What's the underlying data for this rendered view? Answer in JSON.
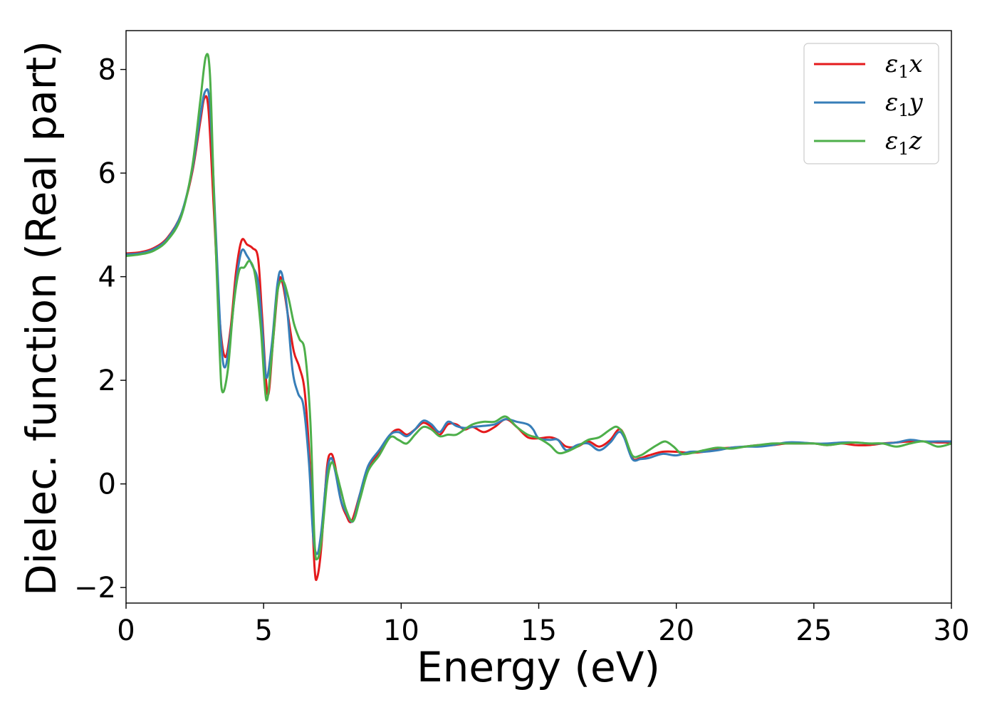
{
  "chart_data": {
    "type": "line",
    "xlabel": "Energy (eV)",
    "ylabel": "Dielec. function (Real part)",
    "xlim": [
      0,
      30
    ],
    "ylim": [
      -2.3,
      8.75
    ],
    "xticks": [
      0,
      5,
      10,
      15,
      20,
      25,
      30
    ],
    "xtick_labels": [
      "0",
      "5",
      "10",
      "15",
      "20",
      "25",
      "30"
    ],
    "yticks": [
      -2,
      0,
      2,
      4,
      6,
      8
    ],
    "ytick_labels": [
      "−2",
      "0",
      "2",
      "4",
      "6",
      "8"
    ],
    "grid": false,
    "legend_position": "top-right",
    "series": [
      {
        "name": "ε1x",
        "label_main": "ε",
        "label_sub": "1",
        "label_var": "x",
        "color": "#e41a1c",
        "points": [
          [
            0,
            4.45
          ],
          [
            0.5,
            4.47
          ],
          [
            1,
            4.55
          ],
          [
            1.5,
            4.75
          ],
          [
            2,
            5.2
          ],
          [
            2.4,
            6.0
          ],
          [
            2.7,
            7.0
          ],
          [
            2.85,
            7.45
          ],
          [
            3.0,
            7.2
          ],
          [
            3.2,
            5.2
          ],
          [
            3.4,
            3.2
          ],
          [
            3.6,
            2.45
          ],
          [
            3.8,
            3.0
          ],
          [
            4.0,
            4.1
          ],
          [
            4.2,
            4.7
          ],
          [
            4.4,
            4.62
          ],
          [
            4.6,
            4.55
          ],
          [
            4.8,
            4.35
          ],
          [
            4.95,
            3.2
          ],
          [
            5.15,
            1.72
          ],
          [
            5.35,
            2.8
          ],
          [
            5.55,
            3.9
          ],
          [
            5.7,
            3.85
          ],
          [
            5.9,
            3.2
          ],
          [
            6.1,
            2.55
          ],
          [
            6.3,
            2.25
          ],
          [
            6.5,
            1.75
          ],
          [
            6.7,
            0.2
          ],
          [
            6.85,
            -1.6
          ],
          [
            6.95,
            -1.8
          ],
          [
            7.1,
            -1.2
          ],
          [
            7.3,
            0.3
          ],
          [
            7.45,
            0.58
          ],
          [
            7.6,
            0.35
          ],
          [
            7.8,
            -0.3
          ],
          [
            8.0,
            -0.6
          ],
          [
            8.2,
            -0.72
          ],
          [
            8.5,
            -0.2
          ],
          [
            8.8,
            0.3
          ],
          [
            9.2,
            0.6
          ],
          [
            9.6,
            0.95
          ],
          [
            9.9,
            1.05
          ],
          [
            10.2,
            0.95
          ],
          [
            10.5,
            1.05
          ],
          [
            10.8,
            1.18
          ],
          [
            11.1,
            1.1
          ],
          [
            11.4,
            0.95
          ],
          [
            11.7,
            1.15
          ],
          [
            12.0,
            1.15
          ],
          [
            12.3,
            1.05
          ],
          [
            12.6,
            1.1
          ],
          [
            13.0,
            1.0
          ],
          [
            13.4,
            1.1
          ],
          [
            13.8,
            1.25
          ],
          [
            14.2,
            1.1
          ],
          [
            14.6,
            0.9
          ],
          [
            15.0,
            0.88
          ],
          [
            15.4,
            0.9
          ],
          [
            15.7,
            0.85
          ],
          [
            16.0,
            0.72
          ],
          [
            16.4,
            0.72
          ],
          [
            16.8,
            0.82
          ],
          [
            17.2,
            0.72
          ],
          [
            17.6,
            0.85
          ],
          [
            17.9,
            1.05
          ],
          [
            18.1,
            0.95
          ],
          [
            18.4,
            0.5
          ],
          [
            18.7,
            0.5
          ],
          [
            19.0,
            0.55
          ],
          [
            19.5,
            0.62
          ],
          [
            20.0,
            0.62
          ],
          [
            20.5,
            0.6
          ],
          [
            21.0,
            0.62
          ],
          [
            21.5,
            0.68
          ],
          [
            22.0,
            0.7
          ],
          [
            22.5,
            0.72
          ],
          [
            23.0,
            0.75
          ],
          [
            23.5,
            0.75
          ],
          [
            24.0,
            0.78
          ],
          [
            24.5,
            0.78
          ],
          [
            25.0,
            0.78
          ],
          [
            25.5,
            0.75
          ],
          [
            26.0,
            0.78
          ],
          [
            26.5,
            0.75
          ],
          [
            27.0,
            0.75
          ],
          [
            27.5,
            0.78
          ],
          [
            28.0,
            0.8
          ],
          [
            28.5,
            0.82
          ],
          [
            29.0,
            0.82
          ],
          [
            29.5,
            0.8
          ],
          [
            30.0,
            0.8
          ]
        ]
      },
      {
        "name": "ε1y",
        "label_main": "ε",
        "label_sub": "1",
        "label_var": "y",
        "color": "#377eb8",
        "points": [
          [
            0,
            4.43
          ],
          [
            0.5,
            4.45
          ],
          [
            1,
            4.53
          ],
          [
            1.5,
            4.73
          ],
          [
            2,
            5.2
          ],
          [
            2.4,
            6.05
          ],
          [
            2.7,
            7.1
          ],
          [
            2.88,
            7.58
          ],
          [
            3.05,
            7.3
          ],
          [
            3.25,
            5.0
          ],
          [
            3.45,
            2.8
          ],
          [
            3.6,
            2.25
          ],
          [
            3.8,
            2.9
          ],
          [
            4.0,
            3.9
          ],
          [
            4.2,
            4.5
          ],
          [
            4.4,
            4.4
          ],
          [
            4.6,
            4.2
          ],
          [
            4.8,
            3.9
          ],
          [
            4.95,
            3.0
          ],
          [
            5.1,
            2.05
          ],
          [
            5.3,
            2.7
          ],
          [
            5.5,
            3.85
          ],
          [
            5.65,
            4.08
          ],
          [
            5.85,
            3.4
          ],
          [
            6.05,
            2.2
          ],
          [
            6.25,
            1.75
          ],
          [
            6.45,
            1.5
          ],
          [
            6.65,
            0.4
          ],
          [
            6.8,
            -1.0
          ],
          [
            6.95,
            -1.35
          ],
          [
            7.1,
            -0.9
          ],
          [
            7.3,
            0.2
          ],
          [
            7.45,
            0.5
          ],
          [
            7.6,
            0.25
          ],
          [
            7.8,
            -0.3
          ],
          [
            8.0,
            -0.55
          ],
          [
            8.25,
            -0.72
          ],
          [
            8.5,
            -0.2
          ],
          [
            8.8,
            0.35
          ],
          [
            9.2,
            0.65
          ],
          [
            9.6,
            0.95
          ],
          [
            9.9,
            1.0
          ],
          [
            10.2,
            0.92
          ],
          [
            10.5,
            1.05
          ],
          [
            10.8,
            1.22
          ],
          [
            11.1,
            1.15
          ],
          [
            11.4,
            1.0
          ],
          [
            11.7,
            1.2
          ],
          [
            12.0,
            1.12
          ],
          [
            12.3,
            1.08
          ],
          [
            12.6,
            1.1
          ],
          [
            13.0,
            1.12
          ],
          [
            13.4,
            1.15
          ],
          [
            13.8,
            1.25
          ],
          [
            14.2,
            1.2
          ],
          [
            14.6,
            1.15
          ],
          [
            14.8,
            1.05
          ],
          [
            15.0,
            0.88
          ],
          [
            15.4,
            0.85
          ],
          [
            15.7,
            0.85
          ],
          [
            16.0,
            0.65
          ],
          [
            16.4,
            0.75
          ],
          [
            16.8,
            0.78
          ],
          [
            17.2,
            0.65
          ],
          [
            17.6,
            0.8
          ],
          [
            17.9,
            1.0
          ],
          [
            18.1,
            0.9
          ],
          [
            18.4,
            0.48
          ],
          [
            18.7,
            0.48
          ],
          [
            19.0,
            0.5
          ],
          [
            19.5,
            0.58
          ],
          [
            20.0,
            0.55
          ],
          [
            20.5,
            0.62
          ],
          [
            21.0,
            0.62
          ],
          [
            21.5,
            0.65
          ],
          [
            22.0,
            0.7
          ],
          [
            22.5,
            0.72
          ],
          [
            23.0,
            0.72
          ],
          [
            23.5,
            0.75
          ],
          [
            24.0,
            0.8
          ],
          [
            24.5,
            0.8
          ],
          [
            25.0,
            0.78
          ],
          [
            25.5,
            0.78
          ],
          [
            26.0,
            0.8
          ],
          [
            26.5,
            0.8
          ],
          [
            27.0,
            0.78
          ],
          [
            27.5,
            0.78
          ],
          [
            28.0,
            0.8
          ],
          [
            28.5,
            0.85
          ],
          [
            29.0,
            0.82
          ],
          [
            29.5,
            0.82
          ],
          [
            30.0,
            0.82
          ]
        ]
      },
      {
        "name": "ε1z",
        "label_main": "ε",
        "label_sub": "1",
        "label_var": "z",
        "color": "#4daf4a",
        "points": [
          [
            0,
            4.4
          ],
          [
            0.5,
            4.43
          ],
          [
            1,
            4.5
          ],
          [
            1.5,
            4.7
          ],
          [
            2,
            5.15
          ],
          [
            2.4,
            6.1
          ],
          [
            2.7,
            7.4
          ],
          [
            2.9,
            8.25
          ],
          [
            3.05,
            7.9
          ],
          [
            3.2,
            5.5
          ],
          [
            3.4,
            2.6
          ],
          [
            3.5,
            1.78
          ],
          [
            3.7,
            2.2
          ],
          [
            3.9,
            3.4
          ],
          [
            4.1,
            4.1
          ],
          [
            4.3,
            4.18
          ],
          [
            4.5,
            4.3
          ],
          [
            4.7,
            4.0
          ],
          [
            4.9,
            3.0
          ],
          [
            5.1,
            1.62
          ],
          [
            5.3,
            2.5
          ],
          [
            5.5,
            3.7
          ],
          [
            5.7,
            3.92
          ],
          [
            5.9,
            3.6
          ],
          [
            6.1,
            3.1
          ],
          [
            6.3,
            2.8
          ],
          [
            6.5,
            2.55
          ],
          [
            6.7,
            1.2
          ],
          [
            6.85,
            -1.1
          ],
          [
            6.95,
            -1.45
          ],
          [
            7.1,
            -1.1
          ],
          [
            7.3,
            0.0
          ],
          [
            7.45,
            0.4
          ],
          [
            7.6,
            0.3
          ],
          [
            7.8,
            -0.1
          ],
          [
            8.0,
            -0.5
          ],
          [
            8.25,
            -0.72
          ],
          [
            8.5,
            -0.3
          ],
          [
            8.8,
            0.25
          ],
          [
            9.2,
            0.55
          ],
          [
            9.6,
            0.9
          ],
          [
            9.9,
            0.85
          ],
          [
            10.2,
            0.78
          ],
          [
            10.5,
            0.95
          ],
          [
            10.8,
            1.1
          ],
          [
            11.1,
            1.05
          ],
          [
            11.4,
            0.92
          ],
          [
            11.7,
            0.95
          ],
          [
            12.0,
            0.95
          ],
          [
            12.3,
            1.05
          ],
          [
            12.6,
            1.15
          ],
          [
            13.0,
            1.2
          ],
          [
            13.4,
            1.2
          ],
          [
            13.8,
            1.3
          ],
          [
            14.2,
            1.1
          ],
          [
            14.6,
            0.95
          ],
          [
            15.0,
            0.88
          ],
          [
            15.4,
            0.75
          ],
          [
            15.7,
            0.6
          ],
          [
            16.0,
            0.62
          ],
          [
            16.4,
            0.72
          ],
          [
            16.8,
            0.85
          ],
          [
            17.2,
            0.9
          ],
          [
            17.6,
            1.05
          ],
          [
            17.85,
            1.1
          ],
          [
            18.1,
            0.95
          ],
          [
            18.4,
            0.55
          ],
          [
            18.7,
            0.55
          ],
          [
            19.0,
            0.65
          ],
          [
            19.3,
            0.75
          ],
          [
            19.6,
            0.82
          ],
          [
            19.9,
            0.72
          ],
          [
            20.2,
            0.58
          ],
          [
            20.6,
            0.6
          ],
          [
            21.0,
            0.65
          ],
          [
            21.5,
            0.7
          ],
          [
            22.0,
            0.68
          ],
          [
            22.5,
            0.72
          ],
          [
            23.0,
            0.75
          ],
          [
            23.5,
            0.78
          ],
          [
            24.0,
            0.78
          ],
          [
            24.5,
            0.78
          ],
          [
            25.0,
            0.78
          ],
          [
            25.5,
            0.75
          ],
          [
            26.0,
            0.78
          ],
          [
            26.5,
            0.8
          ],
          [
            27.0,
            0.78
          ],
          [
            27.5,
            0.78
          ],
          [
            28.0,
            0.72
          ],
          [
            28.5,
            0.78
          ],
          [
            29.0,
            0.82
          ],
          [
            29.5,
            0.72
          ],
          [
            30.0,
            0.78
          ]
        ]
      }
    ]
  }
}
